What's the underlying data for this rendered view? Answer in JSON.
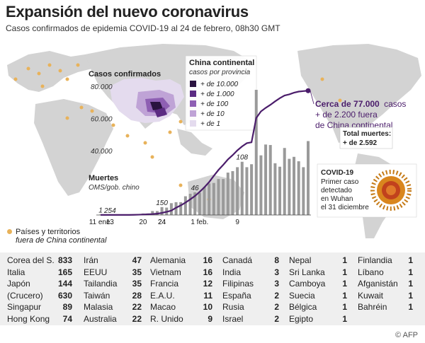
{
  "title": "Expansión del nuevo coronavirus",
  "subtitle": "Casos confirmados de epidemia COVID-19 al 24 de febrero, 08h30 GMT",
  "legend": {
    "title": "China continental",
    "subtitle": "casos por provincia",
    "items": [
      {
        "label": "+ de 10.000",
        "color": "#2a1340"
      },
      {
        "label": "+ de 1.000",
        "color": "#5b2b82"
      },
      {
        "label": "+ de 100",
        "color": "#8e5fb3"
      },
      {
        "label": "+ de 10",
        "color": "#bfa3d6"
      },
      {
        "label": "+ de 1",
        "color": "#e4dbee"
      }
    ]
  },
  "territories_legend": {
    "label": "Países y territorios",
    "sub": "fuera de China continental"
  },
  "annotations": {
    "cases_label": "Casos confirmados",
    "deaths_label": "Muertes",
    "deaths_sub": "OMS/gob. chino",
    "cases_callout_1": "Cerca de 77.000",
    "cases_callout_2": "casos",
    "cases_callout_3": "+ de 2.200 fuera",
    "cases_callout_4": "de China continental",
    "total_deaths_1": "Total muertes:",
    "total_deaths_2": "+ de 2.592",
    "covid_1": "COVID-19",
    "covid_2": "Primer caso",
    "covid_3": "detectado",
    "covid_4": "en Wuhan",
    "covid_5": "el 31 diciembre"
  },
  "chart_data": {
    "type": "line",
    "title": "",
    "x": [
      "11 ene.",
      "12",
      "13",
      "14",
      "15",
      "16",
      "17",
      "18",
      "19",
      "20",
      "21",
      "22",
      "23",
      "24",
      "25",
      "26",
      "27",
      "28",
      "29",
      "30",
      "31",
      "1 feb.",
      "2",
      "3",
      "4",
      "5",
      "6",
      "7",
      "8",
      "9",
      "10",
      "11",
      "12",
      "13",
      "14",
      "15",
      "16",
      "17",
      "18",
      "19",
      "20",
      "21",
      "22",
      "23",
      "24"
    ],
    "x_tick_labels": [
      "11 ene.",
      "20",
      "24",
      "1 feb.",
      "9",
      "13",
      "24"
    ],
    "y_tick_labels": [
      "80.000",
      "60.000",
      "40.000"
    ],
    "ylim": [
      0,
      80000
    ],
    "series": [
      {
        "name": "Casos confirmados",
        "type": "line",
        "values": [
          41,
          41,
          41,
          41,
          41,
          45,
          62,
          121,
          198,
          291,
          440,
          571,
          830,
          1287,
          1975,
          2744,
          4515,
          5974,
          7711,
          9692,
          11791,
          14380,
          17205,
          20438,
          24324,
          28018,
          31161,
          34546,
          37198,
          40171,
          42638,
          44653,
          45171,
          60286,
          64407,
          66584,
          68474,
          70630,
          72611,
          74280,
          74988,
          76001,
          76701,
          77003,
          77262
        ]
      },
      {
        "name": "Muertes",
        "type": "bar",
        "values": [
          1,
          0,
          0,
          0,
          1,
          0,
          0,
          1,
          0,
          3,
          3,
          8,
          8,
          16,
          15,
          24,
          26,
          26,
          38,
          43,
          46,
          45,
          57,
          64,
          65,
          73,
          73,
          86,
          89,
          97,
          108,
          97,
          103,
          254,
          121,
          143,
          142,
          105,
          98,
          136,
          114,
          118,
          109,
          97,
          150
        ]
      }
    ],
    "data_labels": [
      {
        "label": "1",
        "series": "Muertes",
        "x": "11 ene."
      },
      {
        "label": "46",
        "series": "Muertes",
        "x": "31"
      },
      {
        "label": "108",
        "series": "Muertes",
        "x": "10"
      },
      {
        "label": "254",
        "series": "Muertes",
        "x": "13"
      },
      {
        "label": "150",
        "series": "Muertes",
        "x": "24"
      }
    ]
  },
  "countries": {
    "col1": [
      {
        "name": "Corea del S.",
        "value": "833"
      },
      {
        "name": "Italia",
        "value": "165"
      },
      {
        "name": "Japón",
        "value": "144"
      },
      {
        "name": "(Crucero)",
        "value": "630"
      },
      {
        "name": "Singapur",
        "value": "89"
      },
      {
        "name": "Hong Kong",
        "value": "74"
      }
    ],
    "col2": [
      {
        "name": "Irán",
        "value": "47"
      },
      {
        "name": "EEUU",
        "value": "35"
      },
      {
        "name": "Tailandia",
        "value": "35"
      },
      {
        "name": "Taiwán",
        "value": "28"
      },
      {
        "name": "Malasia",
        "value": "22"
      },
      {
        "name": "Australia",
        "value": "22"
      }
    ],
    "col3": [
      {
        "name": "Alemania",
        "value": "16"
      },
      {
        "name": "Vietnam",
        "value": "16"
      },
      {
        "name": "Francia",
        "value": "12"
      },
      {
        "name": "E.A.U.",
        "value": "11"
      },
      {
        "name": "Macao",
        "value": "10"
      },
      {
        "name": "R. Unido",
        "value": "9"
      }
    ],
    "col4": [
      {
        "name": "Canadá",
        "value": "8"
      },
      {
        "name": "India",
        "value": "3"
      },
      {
        "name": "Filipinas",
        "value": "3"
      },
      {
        "name": "España",
        "value": "2"
      },
      {
        "name": "Rusia",
        "value": "2"
      },
      {
        "name": "Israel",
        "value": "2"
      }
    ],
    "col5": [
      {
        "name": "Nepal",
        "value": "1"
      },
      {
        "name": "Sri Lanka",
        "value": "1"
      },
      {
        "name": "Camboya",
        "value": "1"
      },
      {
        "name": "Suecia",
        "value": "1"
      },
      {
        "name": "Bélgica",
        "value": "1"
      },
      {
        "name": "Egipto",
        "value": "1"
      }
    ],
    "col6": [
      {
        "name": "Finlandia",
        "value": "1"
      },
      {
        "name": "Líbano",
        "value": "1"
      },
      {
        "name": "Afganistán",
        "value": "1"
      },
      {
        "name": "Kuwait",
        "value": "1"
      },
      {
        "name": "Bahréin",
        "value": "1"
      }
    ]
  },
  "credit": "© AFP",
  "colors": {
    "line": "#4b1d6b",
    "bar": "#9a9a9a",
    "land": "#d3d3d3",
    "territory_dot": "#e8b25a"
  }
}
